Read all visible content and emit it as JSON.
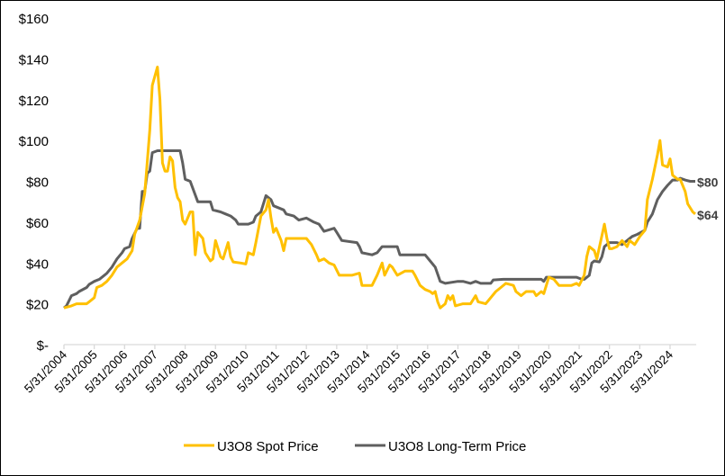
{
  "chart_data": {
    "type": "line",
    "title": "",
    "xlabel": "",
    "ylabel": "",
    "ylim": [
      0,
      160
    ],
    "xlim": [
      "2004-05",
      "2025-03"
    ],
    "grid": false,
    "legend_position": "bottom",
    "y_ticks": [
      {
        "value": 0,
        "label": "$-"
      },
      {
        "value": 20,
        "label": "$20"
      },
      {
        "value": 40,
        "label": "$40"
      },
      {
        "value": 60,
        "label": "$60"
      },
      {
        "value": 80,
        "label": "$80"
      },
      {
        "value": 100,
        "label": "$100"
      },
      {
        "value": 120,
        "label": "$120"
      },
      {
        "value": 140,
        "label": "$140"
      },
      {
        "value": 160,
        "label": "$160"
      }
    ],
    "x_ticks": [
      {
        "date": "2004-05",
        "label": "5/31/2004"
      },
      {
        "date": "2005-05",
        "label": "5/31/2005"
      },
      {
        "date": "2006-05",
        "label": "5/31/2006"
      },
      {
        "date": "2007-05",
        "label": "5/31/2007"
      },
      {
        "date": "2008-05",
        "label": "5/31/2008"
      },
      {
        "date": "2009-05",
        "label": "5/31/2009"
      },
      {
        "date": "2010-05",
        "label": "5/31/2010"
      },
      {
        "date": "2011-05",
        "label": "5/31/2011"
      },
      {
        "date": "2012-05",
        "label": "5/31/2012"
      },
      {
        "date": "2013-05",
        "label": "5/31/2013"
      },
      {
        "date": "2014-05",
        "label": "5/31/2014"
      },
      {
        "date": "2015-05",
        "label": "5/31/2015"
      },
      {
        "date": "2016-05",
        "label": "5/31/2016"
      },
      {
        "date": "2017-05",
        "label": "5/31/2017"
      },
      {
        "date": "2018-05",
        "label": "5/31/2018"
      },
      {
        "date": "2019-05",
        "label": "5/31/2019"
      },
      {
        "date": "2020-05",
        "label": "5/31/2020"
      },
      {
        "date": "2021-05",
        "label": "5/31/2021"
      },
      {
        "date": "2022-05",
        "label": "5/31/2022"
      },
      {
        "date": "2023-05",
        "label": "5/31/2023"
      },
      {
        "date": "2024-05",
        "label": "5/31/2024"
      }
    ],
    "series": [
      {
        "name": "U3O8 Spot Price",
        "color": "#FFC000",
        "end_label": "$64",
        "points": [
          [
            "2004-05",
            18
          ],
          [
            "2004-08",
            19
          ],
          [
            "2004-10",
            20
          ],
          [
            "2005-02",
            20
          ],
          [
            "2005-03",
            21
          ],
          [
            "2005-05",
            23
          ],
          [
            "2005-06",
            28
          ],
          [
            "2005-08",
            29
          ],
          [
            "2005-10",
            31
          ],
          [
            "2005-12",
            34
          ],
          [
            "2006-02",
            38
          ],
          [
            "2006-06",
            42
          ],
          [
            "2006-08",
            46
          ],
          [
            "2006-09",
            54
          ],
          [
            "2006-11",
            61
          ],
          [
            "2007-01",
            74
          ],
          [
            "2007-03",
            105
          ],
          [
            "2007-04",
            127
          ],
          [
            "2007-06",
            136
          ],
          [
            "2007-07",
            120
          ],
          [
            "2007-08",
            89
          ],
          [
            "2007-09",
            85
          ],
          [
            "2007-10",
            85
          ],
          [
            "2007-11",
            92
          ],
          [
            "2007-12",
            90
          ],
          [
            "2008-01",
            77
          ],
          [
            "2008-02",
            72
          ],
          [
            "2008-03",
            70
          ],
          [
            "2008-04",
            61
          ],
          [
            "2008-05",
            59
          ],
          [
            "2008-07",
            65
          ],
          [
            "2008-08",
            65
          ],
          [
            "2008-09",
            44
          ],
          [
            "2008-10",
            55
          ],
          [
            "2008-12",
            52
          ],
          [
            "2009-01",
            45
          ],
          [
            "2009-03",
            41
          ],
          [
            "2009-04",
            42
          ],
          [
            "2009-05",
            51
          ],
          [
            "2009-07",
            43
          ],
          [
            "2009-08",
            42
          ],
          [
            "2009-10",
            50
          ],
          [
            "2009-11",
            43
          ],
          [
            "2009-12",
            40.5
          ],
          [
            "2010-03",
            40
          ],
          [
            "2010-05",
            39.5
          ],
          [
            "2010-06",
            45
          ],
          [
            "2010-08",
            44
          ],
          [
            "2010-09",
            50
          ],
          [
            "2010-11",
            63
          ],
          [
            "2011-01",
            66
          ],
          [
            "2011-02",
            71
          ],
          [
            "2011-03",
            62
          ],
          [
            "2011-04",
            55
          ],
          [
            "2011-05",
            57
          ],
          [
            "2011-07",
            51
          ],
          [
            "2011-08",
            46
          ],
          [
            "2011-09",
            52
          ],
          [
            "2012-01",
            52
          ],
          [
            "2012-05",
            52
          ],
          [
            "2012-07",
            49
          ],
          [
            "2012-09",
            44
          ],
          [
            "2012-10",
            41
          ],
          [
            "2012-12",
            42
          ],
          [
            "2013-02",
            40
          ],
          [
            "2013-04",
            39
          ],
          [
            "2013-06",
            34
          ],
          [
            "2013-11",
            34
          ],
          [
            "2014-02",
            35
          ],
          [
            "2014-03",
            29
          ],
          [
            "2014-07",
            29
          ],
          [
            "2014-09",
            34
          ],
          [
            "2014-11",
            40
          ],
          [
            "2014-12",
            34
          ],
          [
            "2015-02",
            39
          ],
          [
            "2015-03",
            38
          ],
          [
            "2015-05",
            34
          ],
          [
            "2015-08",
            36
          ],
          [
            "2015-11",
            36
          ],
          [
            "2015-12",
            34
          ],
          [
            "2016-02",
            29
          ],
          [
            "2016-04",
            27
          ],
          [
            "2016-06",
            26
          ],
          [
            "2016-07",
            25
          ],
          [
            "2016-08",
            26
          ],
          [
            "2016-09",
            21
          ],
          [
            "2016-10",
            18
          ],
          [
            "2016-12",
            20
          ],
          [
            "2017-01",
            24
          ],
          [
            "2017-02",
            22
          ],
          [
            "2017-03",
            24
          ],
          [
            "2017-04",
            19
          ],
          [
            "2017-07",
            20
          ],
          [
            "2017-10",
            20
          ],
          [
            "2017-12",
            24
          ],
          [
            "2018-01",
            21
          ],
          [
            "2018-04",
            20
          ],
          [
            "2018-06",
            23
          ],
          [
            "2018-08",
            26
          ],
          [
            "2018-10",
            28
          ],
          [
            "2018-12",
            30
          ],
          [
            "2019-03",
            29
          ],
          [
            "2019-04",
            26
          ],
          [
            "2019-06",
            24
          ],
          [
            "2019-08",
            26
          ],
          [
            "2019-11",
            26
          ],
          [
            "2019-12",
            24
          ],
          [
            "2020-02",
            26
          ],
          [
            "2020-03",
            25
          ],
          [
            "2020-04",
            29
          ],
          [
            "2020-05",
            33
          ],
          [
            "2020-07",
            32
          ],
          [
            "2020-09",
            29
          ],
          [
            "2020-12",
            29
          ],
          [
            "2021-02",
            29
          ],
          [
            "2021-04",
            30
          ],
          [
            "2021-05",
            29
          ],
          [
            "2021-07",
            34
          ],
          [
            "2021-08",
            43
          ],
          [
            "2021-09",
            48
          ],
          [
            "2021-11",
            46
          ],
          [
            "2021-12",
            42
          ],
          [
            "2022-03",
            59
          ],
          [
            "2022-04",
            52
          ],
          [
            "2022-05",
            47
          ],
          [
            "2022-06",
            47
          ],
          [
            "2022-08",
            48
          ],
          [
            "2022-10",
            51
          ],
          [
            "2022-12",
            48
          ],
          [
            "2023-01",
            51
          ],
          [
            "2023-03",
            49
          ],
          [
            "2023-05",
            53
          ],
          [
            "2023-07",
            56
          ],
          [
            "2023-08",
            71
          ],
          [
            "2023-10",
            81
          ],
          [
            "2023-12",
            93
          ],
          [
            "2024-01",
            100
          ],
          [
            "2024-02",
            88
          ],
          [
            "2024-04",
            87
          ],
          [
            "2024-05",
            91
          ],
          [
            "2024-06",
            83
          ],
          [
            "2024-08",
            81
          ],
          [
            "2024-09",
            81
          ],
          [
            "2024-11",
            75
          ],
          [
            "2024-12",
            69
          ],
          [
            "2025-02",
            65
          ],
          [
            "2025-03",
            64
          ]
        ]
      },
      {
        "name": "U3O8 Long-Term Price",
        "color": "#5F5F5F",
        "end_label": "$80",
        "points": [
          [
            "2004-05",
            18
          ],
          [
            "2004-06",
            19
          ],
          [
            "2004-08",
            24
          ],
          [
            "2004-10",
            25
          ],
          [
            "2004-11",
            26
          ],
          [
            "2005-02",
            28
          ],
          [
            "2005-03",
            29.5
          ],
          [
            "2005-05",
            31
          ],
          [
            "2005-07",
            32
          ],
          [
            "2005-09",
            34
          ],
          [
            "2005-10",
            35
          ],
          [
            "2005-12",
            38
          ],
          [
            "2006-02",
            42
          ],
          [
            "2006-04",
            45
          ],
          [
            "2006-05",
            47
          ],
          [
            "2006-07",
            48
          ],
          [
            "2006-08",
            52
          ],
          [
            "2006-10",
            57
          ],
          [
            "2006-11",
            57
          ],
          [
            "2006-12",
            75
          ],
          [
            "2007-01",
            75
          ],
          [
            "2007-02",
            84
          ],
          [
            "2007-03",
            85
          ],
          [
            "2007-04",
            94
          ],
          [
            "2007-06",
            95
          ],
          [
            "2008-03",
            95
          ],
          [
            "2008-04",
            89
          ],
          [
            "2008-05",
            81
          ],
          [
            "2008-07",
            80
          ],
          [
            "2008-10",
            70
          ],
          [
            "2009-03",
            70
          ],
          [
            "2009-04",
            66
          ],
          [
            "2009-07",
            65
          ],
          [
            "2009-09",
            64
          ],
          [
            "2009-11",
            63
          ],
          [
            "2010-01",
            61
          ],
          [
            "2010-02",
            59
          ],
          [
            "2010-06",
            59
          ],
          [
            "2010-08",
            60
          ],
          [
            "2010-09",
            63
          ],
          [
            "2010-11",
            65
          ],
          [
            "2011-01",
            73
          ],
          [
            "2011-03",
            71
          ],
          [
            "2011-04",
            68
          ],
          [
            "2011-08",
            66
          ],
          [
            "2011-09",
            64
          ],
          [
            "2011-12",
            63
          ],
          [
            "2012-02",
            61
          ],
          [
            "2012-05",
            62
          ],
          [
            "2012-08",
            60
          ],
          [
            "2012-10",
            59
          ],
          [
            "2012-12",
            55.5
          ],
          [
            "2013-04",
            57
          ],
          [
            "2013-05",
            55
          ],
          [
            "2013-07",
            51
          ],
          [
            "2014-01",
            50
          ],
          [
            "2014-02",
            48
          ],
          [
            "2014-03",
            45
          ],
          [
            "2014-07",
            44
          ],
          [
            "2014-09",
            45
          ],
          [
            "2014-11",
            48
          ],
          [
            "2015-05",
            48
          ],
          [
            "2015-06",
            44
          ],
          [
            "2016-04",
            44
          ],
          [
            "2016-06",
            41
          ],
          [
            "2016-08",
            38
          ],
          [
            "2016-10",
            31
          ],
          [
            "2016-12",
            30
          ],
          [
            "2017-05",
            31
          ],
          [
            "2017-07",
            31
          ],
          [
            "2017-10",
            30
          ],
          [
            "2017-12",
            31
          ],
          [
            "2018-02",
            30
          ],
          [
            "2018-06",
            30
          ],
          [
            "2018-07",
            31.7
          ],
          [
            "2018-11",
            32
          ],
          [
            "2018-12",
            32
          ],
          [
            "2020-02",
            32
          ],
          [
            "2020-03",
            31
          ],
          [
            "2020-04",
            33
          ],
          [
            "2021-04",
            33
          ],
          [
            "2021-06",
            32
          ],
          [
            "2021-07",
            32
          ],
          [
            "2021-09",
            34
          ],
          [
            "2021-10",
            40
          ],
          [
            "2021-11",
            41
          ],
          [
            "2022-01",
            40.5
          ],
          [
            "2022-02",
            43
          ],
          [
            "2022-03",
            48
          ],
          [
            "2022-05",
            50
          ],
          [
            "2022-08",
            50
          ],
          [
            "2022-10",
            49
          ],
          [
            "2022-12",
            51
          ],
          [
            "2023-02",
            53
          ],
          [
            "2023-04",
            54
          ],
          [
            "2023-07",
            56
          ],
          [
            "2023-08",
            60
          ],
          [
            "2023-10",
            64
          ],
          [
            "2023-12",
            71
          ],
          [
            "2024-02",
            75
          ],
          [
            "2024-04",
            78
          ],
          [
            "2024-06",
            80.6
          ],
          [
            "2024-08",
            80.6
          ],
          [
            "2024-09",
            81.5
          ],
          [
            "2024-11",
            80.6
          ],
          [
            "2025-01",
            80
          ],
          [
            "2025-03",
            80
          ]
        ]
      }
    ]
  }
}
